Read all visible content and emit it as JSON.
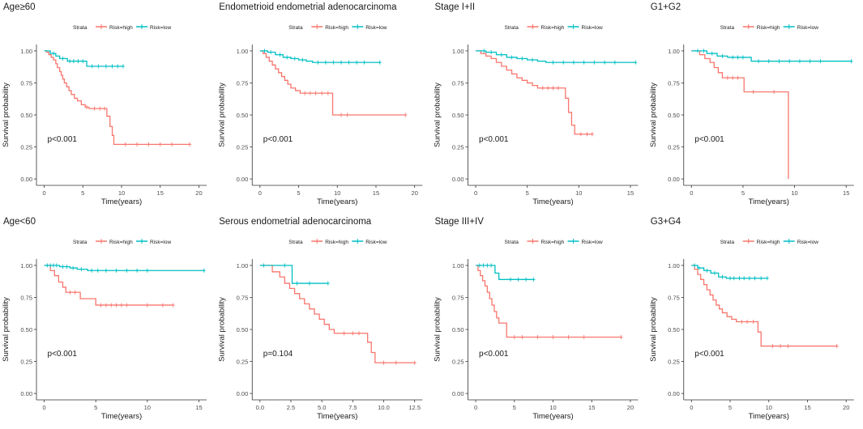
{
  "colors": {
    "high": "#F8766D",
    "low": "#00BFC4",
    "axis": "#333333",
    "text": "#1a1a1a",
    "tick": "#4d4d4d"
  },
  "legend": {
    "title": "Strata",
    "high_label": "Risk=high",
    "low_label": "Risk=low"
  },
  "xlabel": "Time(years)",
  "ylabel": "Survival probability",
  "chart_data": [
    {
      "type": "line",
      "title": "Age≥60",
      "pvalue": "p<0.001",
      "xlim": [
        0,
        20
      ],
      "xticks": [
        "0",
        "5",
        "10",
        "15",
        "20"
      ],
      "ylim": [
        0,
        1
      ],
      "yticks": [
        "0.00",
        "0.25",
        "0.50",
        "0.75",
        "1.00"
      ],
      "series": [
        {
          "name": "Risk=high",
          "end": 18.8,
          "steps": [
            [
              0,
              1.0
            ],
            [
              0.3,
              0.99
            ],
            [
              0.6,
              0.97
            ],
            [
              0.9,
              0.95
            ],
            [
              1.2,
              0.93
            ],
            [
              1.5,
              0.9
            ],
            [
              1.7,
              0.87
            ],
            [
              2.0,
              0.84
            ],
            [
              2.2,
              0.81
            ],
            [
              2.4,
              0.78
            ],
            [
              2.6,
              0.75
            ],
            [
              2.9,
              0.72
            ],
            [
              3.2,
              0.69
            ],
            [
              3.5,
              0.66
            ],
            [
              3.9,
              0.63
            ],
            [
              4.3,
              0.61
            ],
            [
              4.8,
              0.58
            ],
            [
              5.3,
              0.56
            ],
            [
              5.8,
              0.55
            ],
            [
              8.1,
              0.49
            ],
            [
              8.5,
              0.41
            ],
            [
              8.8,
              0.34
            ],
            [
              9.0,
              0.27
            ]
          ],
          "censors": [
            5.5,
            6.5,
            7.2,
            7.8,
            10.5,
            12,
            13.5,
            15,
            16.5,
            18.8
          ]
        },
        {
          "name": "Risk=low",
          "end": 10.2,
          "steps": [
            [
              0,
              1.0
            ],
            [
              0.8,
              0.98
            ],
            [
              1.5,
              0.96
            ],
            [
              2.0,
              0.94
            ],
            [
              3.0,
              0.92
            ],
            [
              5.5,
              0.88
            ]
          ],
          "censors": [
            1.2,
            2.4,
            3.3,
            3.8,
            4.4,
            5.0,
            6.2,
            7.0,
            8.0,
            8.8,
            9.5,
            10.2
          ]
        }
      ]
    },
    {
      "type": "line",
      "title": "Endometrioid endometrial adenocarcinoma",
      "pvalue": "p<0.001",
      "xlim": [
        0,
        20
      ],
      "xticks": [
        "0",
        "5",
        "10",
        "15",
        "20"
      ],
      "ylim": [
        0,
        1
      ],
      "yticks": [
        "0.00",
        "0.25",
        "0.50",
        "0.75",
        "1.00"
      ],
      "series": [
        {
          "name": "Risk=high",
          "end": 18.8,
          "steps": [
            [
              0,
              1.0
            ],
            [
              0.4,
              0.98
            ],
            [
              0.8,
              0.95
            ],
            [
              1.2,
              0.92
            ],
            [
              1.6,
              0.89
            ],
            [
              2.0,
              0.86
            ],
            [
              2.4,
              0.83
            ],
            [
              2.8,
              0.8
            ],
            [
              3.2,
              0.77
            ],
            [
              3.6,
              0.74
            ],
            [
              4.0,
              0.71
            ],
            [
              4.6,
              0.69
            ],
            [
              5.2,
              0.67
            ],
            [
              9.4,
              0.5
            ]
          ],
          "censors": [
            5.8,
            6.5,
            7.2,
            8.0,
            8.8,
            10.5,
            11.3,
            18.8
          ]
        },
        {
          "name": "Risk=low",
          "end": 15.5,
          "steps": [
            [
              0,
              1.0
            ],
            [
              1.0,
              0.99
            ],
            [
              2.0,
              0.97
            ],
            [
              3.0,
              0.95
            ],
            [
              4.0,
              0.94
            ],
            [
              5.0,
              0.93
            ],
            [
              6.0,
              0.92
            ],
            [
              6.8,
              0.91
            ]
          ],
          "censors": [
            0.6,
            1.4,
            2.6,
            3.5,
            4.5,
            5.5,
            7.5,
            8.5,
            9.5,
            10.5,
            11.5,
            12.5,
            13.5,
            15.5
          ]
        }
      ]
    },
    {
      "type": "line",
      "title": "Stage I+II",
      "pvalue": "p<0.001",
      "xlim": [
        0,
        15
      ],
      "xticks": [
        "0",
        "5",
        "10",
        "15"
      ],
      "ylim": [
        0,
        1
      ],
      "yticks": [
        "0.00",
        "0.25",
        "0.50",
        "0.75",
        "1.00"
      ],
      "series": [
        {
          "name": "Risk=high",
          "end": 11.3,
          "steps": [
            [
              0,
              1.0
            ],
            [
              0.5,
              0.98
            ],
            [
              1.0,
              0.96
            ],
            [
              1.5,
              0.94
            ],
            [
              2.0,
              0.91
            ],
            [
              2.5,
              0.88
            ],
            [
              3.0,
              0.85
            ],
            [
              3.5,
              0.82
            ],
            [
              4.0,
              0.79
            ],
            [
              4.5,
              0.77
            ],
            [
              5.0,
              0.75
            ],
            [
              5.5,
              0.73
            ],
            [
              6.0,
              0.71
            ],
            [
              8.7,
              0.63
            ],
            [
              9.0,
              0.52
            ],
            [
              9.3,
              0.42
            ],
            [
              9.6,
              0.35
            ]
          ],
          "censors": [
            6.5,
            7.0,
            7.5,
            8.0,
            10.2,
            10.8,
            11.3
          ]
        },
        {
          "name": "Risk=low",
          "end": 15.5,
          "steps": [
            [
              0,
              1.0
            ],
            [
              1.0,
              0.99
            ],
            [
              2.0,
              0.97
            ],
            [
              3.0,
              0.95
            ],
            [
              4.0,
              0.94
            ],
            [
              5.0,
              0.93
            ],
            [
              6.0,
              0.92
            ],
            [
              6.8,
              0.91
            ]
          ],
          "censors": [
            0.8,
            1.5,
            2.5,
            3.5,
            4.5,
            5.5,
            7.5,
            8.5,
            9.5,
            10.5,
            11.5,
            12.5,
            13.5,
            15.5
          ]
        }
      ]
    },
    {
      "type": "line",
      "title": "G1+G2",
      "pvalue": "p<0.001",
      "xlim": [
        0,
        15
      ],
      "xticks": [
        "0",
        "5",
        "10",
        "15"
      ],
      "ylim": [
        0,
        1
      ],
      "yticks": [
        "0.00",
        "0.25",
        "0.50",
        "0.75",
        "1.00"
      ],
      "series": [
        {
          "name": "Risk=high",
          "end": 9.4,
          "steps": [
            [
              0,
              1.0
            ],
            [
              0.8,
              0.97
            ],
            [
              1.3,
              0.94
            ],
            [
              1.8,
              0.91
            ],
            [
              2.2,
              0.87
            ],
            [
              2.6,
              0.83
            ],
            [
              3.0,
              0.79
            ],
            [
              5.1,
              0.68
            ],
            [
              9.4,
              0.0
            ]
          ],
          "censors": [
            3.5,
            4.0,
            4.5,
            6.0,
            8.0
          ]
        },
        {
          "name": "Risk=low",
          "end": 15.5,
          "steps": [
            [
              0,
              1.0
            ],
            [
              1.5,
              0.98
            ],
            [
              2.5,
              0.96
            ],
            [
              3.5,
              0.95
            ],
            [
              5.8,
              0.92
            ]
          ],
          "censors": [
            0.6,
            1.2,
            2.0,
            3.0,
            4.0,
            4.5,
            5.0,
            6.5,
            7.5,
            8.5,
            9.5,
            10.5,
            11.5,
            12.5,
            15.5
          ]
        }
      ]
    },
    {
      "type": "line",
      "title": "Age<60",
      "pvalue": "p<0.001",
      "xlim": [
        0,
        15
      ],
      "xticks": [
        "0",
        "5",
        "10",
        "15"
      ],
      "ylim": [
        0,
        1
      ],
      "yticks": [
        "0.00",
        "0.25",
        "0.50",
        "0.75",
        "1.00"
      ],
      "series": [
        {
          "name": "Risk=high",
          "end": 12.5,
          "steps": [
            [
              0,
              1.0
            ],
            [
              0.6,
              0.96
            ],
            [
              1.0,
              0.92
            ],
            [
              1.4,
              0.87
            ],
            [
              1.8,
              0.83
            ],
            [
              2.1,
              0.79
            ],
            [
              3.5,
              0.74
            ],
            [
              5.0,
              0.69
            ]
          ],
          "censors": [
            2.5,
            3.0,
            5.5,
            6.0,
            6.5,
            7.0,
            7.5,
            8.0,
            10.0,
            11.5,
            12.5
          ]
        },
        {
          "name": "Risk=low",
          "end": 15.5,
          "steps": [
            [
              0,
              1.0
            ],
            [
              1.5,
              0.99
            ],
            [
              2.5,
              0.98
            ],
            [
              3.2,
              0.97
            ],
            [
              4.2,
              0.96
            ]
          ],
          "censors": [
            0.3,
            0.6,
            0.9,
            1.2,
            1.8,
            2.2,
            2.8,
            3.6,
            4.6,
            5.2,
            6.0,
            7.0,
            8.0,
            9.0,
            10.0,
            15.5
          ]
        }
      ]
    },
    {
      "type": "line",
      "title": "Serous endometrial adenocarcinoma",
      "pvalue": "p=0.104",
      "xlim": [
        0,
        12.5
      ],
      "xticks": [
        "0.0",
        "2.5",
        "5.0",
        "7.5",
        "10.0",
        "12.5"
      ],
      "ylim": [
        0,
        1
      ],
      "yticks": [
        "0.00",
        "0.25",
        "0.50",
        "0.75",
        "1.00"
      ],
      "series": [
        {
          "name": "Risk=high",
          "end": 12.5,
          "steps": [
            [
              0,
              1.0
            ],
            [
              1.0,
              0.95
            ],
            [
              1.6,
              0.91
            ],
            [
              2.0,
              0.86
            ],
            [
              2.4,
              0.82
            ],
            [
              2.8,
              0.78
            ],
            [
              3.2,
              0.74
            ],
            [
              3.6,
              0.7
            ],
            [
              4.0,
              0.66
            ],
            [
              4.4,
              0.62
            ],
            [
              4.8,
              0.58
            ],
            [
              5.2,
              0.54
            ],
            [
              5.6,
              0.5
            ],
            [
              6.0,
              0.47
            ],
            [
              8.7,
              0.4
            ],
            [
              9.0,
              0.32
            ],
            [
              9.3,
              0.24
            ]
          ],
          "censors": [
            6.8,
            7.5,
            8.0,
            10.0,
            11.0,
            12.5
          ]
        },
        {
          "name": "Risk=low",
          "end": 5.5,
          "steps": [
            [
              0,
              1.0
            ],
            [
              2.6,
              0.86
            ]
          ],
          "censors": [
            0.3,
            2.0,
            3.0,
            4.0,
            5.5
          ]
        }
      ]
    },
    {
      "type": "line",
      "title": "Stage III+IV",
      "pvalue": "p<0.001",
      "xlim": [
        0,
        20
      ],
      "xticks": [
        "0",
        "5",
        "10",
        "15",
        "20"
      ],
      "ylim": [
        0,
        1
      ],
      "yticks": [
        "0.00",
        "0.25",
        "0.50",
        "0.75",
        "1.00"
      ],
      "series": [
        {
          "name": "Risk=high",
          "end": 18.8,
          "steps": [
            [
              0,
              1.0
            ],
            [
              0.3,
              0.96
            ],
            [
              0.6,
              0.92
            ],
            [
              0.9,
              0.88
            ],
            [
              1.2,
              0.84
            ],
            [
              1.5,
              0.79
            ],
            [
              1.8,
              0.74
            ],
            [
              2.1,
              0.69
            ],
            [
              2.4,
              0.64
            ],
            [
              2.7,
              0.59
            ],
            [
              3.0,
              0.55
            ],
            [
              4.0,
              0.44
            ]
          ],
          "censors": [
            5.0,
            6.0,
            8.0,
            10.0,
            12.0,
            14.0,
            18.8
          ]
        },
        {
          "name": "Risk=low",
          "end": 7.5,
          "steps": [
            [
              0,
              1.0
            ],
            [
              2.5,
              0.94
            ],
            [
              3.0,
              0.89
            ]
          ],
          "censors": [
            0.5,
            1.0,
            1.5,
            2.0,
            4.5,
            5.5,
            6.5,
            7.5
          ]
        }
      ]
    },
    {
      "type": "line",
      "title": "G3+G4",
      "pvalue": "p<0.001",
      "xlim": [
        0,
        20
      ],
      "xticks": [
        "0",
        "5",
        "10",
        "15",
        "20"
      ],
      "ylim": [
        0,
        1
      ],
      "yticks": [
        "0.00",
        "0.25",
        "0.50",
        "0.75",
        "1.00"
      ],
      "series": [
        {
          "name": "Risk=high",
          "end": 18.8,
          "steps": [
            [
              0,
              1.0
            ],
            [
              0.4,
              0.97
            ],
            [
              0.8,
              0.93
            ],
            [
              1.2,
              0.89
            ],
            [
              1.6,
              0.85
            ],
            [
              2.0,
              0.81
            ],
            [
              2.4,
              0.77
            ],
            [
              2.8,
              0.73
            ],
            [
              3.2,
              0.69
            ],
            [
              3.6,
              0.66
            ],
            [
              4.0,
              0.63
            ],
            [
              4.6,
              0.6
            ],
            [
              5.2,
              0.58
            ],
            [
              5.8,
              0.56
            ],
            [
              8.6,
              0.48
            ],
            [
              9.0,
              0.37
            ]
          ],
          "censors": [
            6.5,
            7.2,
            8.0,
            10.5,
            11.5,
            12.5,
            18.8
          ]
        },
        {
          "name": "Risk=low",
          "end": 9.8,
          "steps": [
            [
              0,
              1.0
            ],
            [
              0.8,
              0.98
            ],
            [
              1.6,
              0.96
            ],
            [
              2.5,
              0.94
            ],
            [
              3.5,
              0.91
            ],
            [
              4.5,
              0.9
            ]
          ],
          "censors": [
            0.4,
            1.0,
            2.0,
            3.0,
            4.0,
            5.0,
            5.5,
            6.2,
            6.8,
            7.5,
            8.2,
            9.0,
            9.8
          ]
        }
      ]
    }
  ]
}
